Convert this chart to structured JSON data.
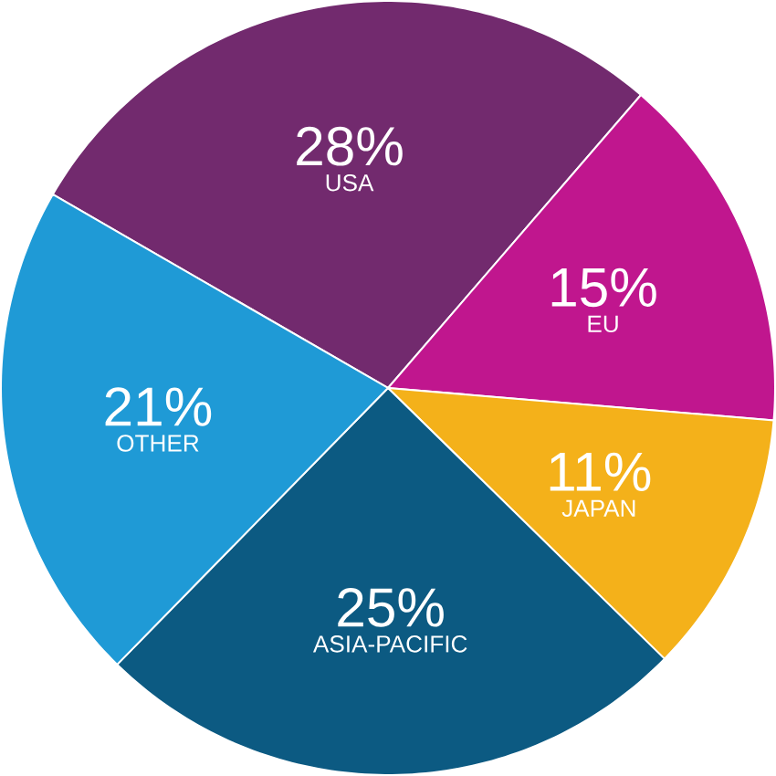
{
  "chart_data": {
    "type": "pie",
    "categories": [
      "USA",
      "EU",
      "JAPAN",
      "ASIA-PACIFIC",
      "OTHER"
    ],
    "values": [
      28,
      15,
      11,
      25,
      21
    ],
    "value_labels": [
      "28%",
      "15%",
      "11%",
      "25%",
      "21%"
    ],
    "colors": [
      "#722a6e",
      "#c0168e",
      "#f4b11a",
      "#0c5a82",
      "#1f9ad6"
    ]
  }
}
